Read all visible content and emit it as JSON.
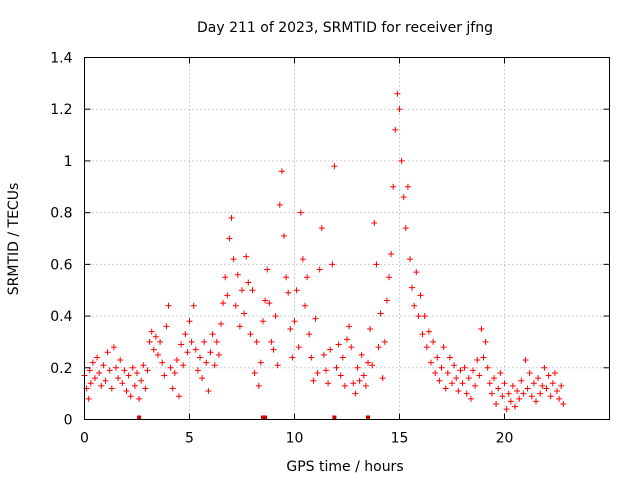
{
  "chart_data": {
    "type": "scatter",
    "title": "Day 211 of 2023, SRMTID for receiver jfng",
    "xlabel": "GPS time / hours",
    "ylabel": "SRMTID / TECUs",
    "xlim": [
      0,
      25
    ],
    "ylim": [
      0,
      1.4
    ],
    "xticks": [
      0,
      5,
      10,
      15,
      20
    ],
    "xtick_labels": [
      "0",
      "5",
      "10",
      "15",
      "20"
    ],
    "yticks": [
      0,
      0.2,
      0.4,
      0.6,
      0.8,
      1.0,
      1.2,
      1.4
    ],
    "ytick_labels": [
      "0",
      "0.2",
      "0.4",
      "0.6",
      "0.8",
      "1",
      "1.2",
      "1.4"
    ],
    "grid": true,
    "marker": "+",
    "colors": {
      "points": "#ff0000",
      "gaps": "#cc0000",
      "axes": "#000000",
      "grid": "#a0a0a0"
    },
    "series": [
      {
        "name": "SRMTID",
        "points": [
          [
            0.0,
            0.17
          ],
          [
            0.1,
            0.12
          ],
          [
            0.2,
            0.08
          ],
          [
            0.25,
            0.19
          ],
          [
            0.3,
            0.14
          ],
          [
            0.4,
            0.22
          ],
          [
            0.5,
            0.16
          ],
          [
            0.6,
            0.24
          ],
          [
            0.7,
            0.18
          ],
          [
            0.8,
            0.13
          ],
          [
            0.9,
            0.21
          ],
          [
            1.0,
            0.15
          ],
          [
            1.1,
            0.26
          ],
          [
            1.2,
            0.19
          ],
          [
            1.3,
            0.12
          ],
          [
            1.4,
            0.28
          ],
          [
            1.5,
            0.2
          ],
          [
            1.6,
            0.16
          ],
          [
            1.7,
            0.23
          ],
          [
            1.8,
            0.14
          ],
          [
            1.9,
            0.19
          ],
          [
            2.0,
            0.11
          ],
          [
            2.1,
            0.17
          ],
          [
            2.2,
            0.09
          ],
          [
            2.3,
            0.2
          ],
          [
            2.4,
            0.13
          ],
          [
            2.5,
            0.18
          ],
          [
            2.6,
            0.08
          ],
          [
            2.7,
            0.15
          ],
          [
            2.8,
            0.21
          ],
          [
            2.9,
            0.12
          ],
          [
            3.0,
            0.19
          ],
          [
            3.1,
            0.3
          ],
          [
            3.2,
            0.34
          ],
          [
            3.3,
            0.27
          ],
          [
            3.4,
            0.32
          ],
          [
            3.5,
            0.25
          ],
          [
            3.6,
            0.3
          ],
          [
            3.7,
            0.22
          ],
          [
            3.8,
            0.17
          ],
          [
            3.9,
            0.36
          ],
          [
            4.0,
            0.44
          ],
          [
            4.1,
            0.2
          ],
          [
            4.2,
            0.12
          ],
          [
            4.3,
            0.18
          ],
          [
            4.4,
            0.23
          ],
          [
            4.5,
            0.09
          ],
          [
            4.6,
            0.29
          ],
          [
            4.7,
            0.21
          ],
          [
            4.8,
            0.33
          ],
          [
            4.9,
            0.26
          ],
          [
            5.0,
            0.38
          ],
          [
            5.1,
            0.3
          ],
          [
            5.2,
            0.44
          ],
          [
            5.3,
            0.27
          ],
          [
            5.4,
            0.19
          ],
          [
            5.5,
            0.24
          ],
          [
            5.6,
            0.16
          ],
          [
            5.7,
            0.3
          ],
          [
            5.8,
            0.22
          ],
          [
            5.9,
            0.11
          ],
          [
            6.0,
            0.26
          ],
          [
            6.1,
            0.33
          ],
          [
            6.2,
            0.21
          ],
          [
            6.3,
            0.3
          ],
          [
            6.4,
            0.25
          ],
          [
            6.5,
            0.37
          ],
          [
            6.6,
            0.45
          ],
          [
            6.7,
            0.55
          ],
          [
            6.8,
            0.48
          ],
          [
            6.9,
            0.7
          ],
          [
            7.0,
            0.78
          ],
          [
            7.1,
            0.62
          ],
          [
            7.2,
            0.44
          ],
          [
            7.3,
            0.56
          ],
          [
            7.4,
            0.36
          ],
          [
            7.5,
            0.5
          ],
          [
            7.6,
            0.41
          ],
          [
            7.7,
            0.63
          ],
          [
            7.8,
            0.53
          ],
          [
            7.9,
            0.33
          ],
          [
            8.0,
            0.5
          ],
          [
            8.1,
            0.18
          ],
          [
            8.2,
            0.3
          ],
          [
            8.3,
            0.13
          ],
          [
            8.4,
            0.22
          ],
          [
            8.5,
            0.38
          ],
          [
            8.6,
            0.46
          ],
          [
            8.7,
            0.58
          ],
          [
            8.8,
            0.45
          ],
          [
            8.9,
            0.3
          ],
          [
            9.0,
            0.27
          ],
          [
            9.1,
            0.4
          ],
          [
            9.2,
            0.21
          ],
          [
            9.3,
            0.83
          ],
          [
            9.4,
            0.96
          ],
          [
            9.5,
            0.71
          ],
          [
            9.6,
            0.55
          ],
          [
            9.7,
            0.49
          ],
          [
            9.8,
            0.35
          ],
          [
            9.9,
            0.24
          ],
          [
            10.0,
            0.38
          ],
          [
            10.1,
            0.5
          ],
          [
            10.2,
            0.28
          ],
          [
            10.3,
            0.8
          ],
          [
            10.4,
            0.62
          ],
          [
            10.5,
            0.44
          ],
          [
            10.6,
            0.55
          ],
          [
            10.7,
            0.33
          ],
          [
            10.8,
            0.24
          ],
          [
            10.9,
            0.15
          ],
          [
            11.0,
            0.39
          ],
          [
            11.1,
            0.18
          ],
          [
            11.2,
            0.58
          ],
          [
            11.3,
            0.74
          ],
          [
            11.4,
            0.25
          ],
          [
            11.5,
            0.19
          ],
          [
            11.6,
            0.14
          ],
          [
            11.7,
            0.27
          ],
          [
            11.8,
            0.6
          ],
          [
            11.9,
            0.98
          ],
          [
            12.0,
            0.2
          ],
          [
            12.1,
            0.29
          ],
          [
            12.2,
            0.17
          ],
          [
            12.3,
            0.24
          ],
          [
            12.4,
            0.13
          ],
          [
            12.5,
            0.31
          ],
          [
            12.6,
            0.36
          ],
          [
            12.7,
            0.28
          ],
          [
            12.8,
            0.14
          ],
          [
            12.9,
            0.1
          ],
          [
            13.0,
            0.2
          ],
          [
            13.1,
            0.15
          ],
          [
            13.2,
            0.25
          ],
          [
            13.3,
            0.17
          ],
          [
            13.4,
            0.13
          ],
          [
            13.5,
            0.22
          ],
          [
            13.6,
            0.35
          ],
          [
            13.7,
            0.21
          ],
          [
            13.8,
            0.76
          ],
          [
            13.9,
            0.6
          ],
          [
            14.0,
            0.28
          ],
          [
            14.1,
            0.41
          ],
          [
            14.2,
            0.16
          ],
          [
            14.3,
            0.3
          ],
          [
            14.4,
            0.46
          ],
          [
            14.5,
            0.55
          ],
          [
            14.6,
            0.64
          ],
          [
            14.7,
            0.9
          ],
          [
            14.8,
            1.12
          ],
          [
            14.9,
            1.26
          ],
          [
            15.0,
            1.2
          ],
          [
            15.1,
            1.0
          ],
          [
            15.2,
            0.86
          ],
          [
            15.3,
            0.74
          ],
          [
            15.4,
            0.9
          ],
          [
            15.5,
            0.62
          ],
          [
            15.6,
            0.51
          ],
          [
            15.7,
            0.44
          ],
          [
            15.8,
            0.57
          ],
          [
            15.9,
            0.4
          ],
          [
            16.0,
            0.48
          ],
          [
            16.1,
            0.33
          ],
          [
            16.2,
            0.4
          ],
          [
            16.3,
            0.28
          ],
          [
            16.4,
            0.34
          ],
          [
            16.5,
            0.22
          ],
          [
            16.6,
            0.3
          ],
          [
            16.7,
            0.18
          ],
          [
            16.8,
            0.24
          ],
          [
            16.9,
            0.15
          ],
          [
            17.0,
            0.2
          ],
          [
            17.1,
            0.28
          ],
          [
            17.2,
            0.12
          ],
          [
            17.3,
            0.18
          ],
          [
            17.4,
            0.24
          ],
          [
            17.5,
            0.14
          ],
          [
            17.6,
            0.21
          ],
          [
            17.7,
            0.16
          ],
          [
            17.8,
            0.11
          ],
          [
            17.9,
            0.19
          ],
          [
            18.0,
            0.14
          ],
          [
            18.1,
            0.2
          ],
          [
            18.2,
            0.1
          ],
          [
            18.3,
            0.16
          ],
          [
            18.4,
            0.08
          ],
          [
            18.5,
            0.19
          ],
          [
            18.6,
            0.13
          ],
          [
            18.7,
            0.23
          ],
          [
            18.8,
            0.17
          ],
          [
            18.9,
            0.35
          ],
          [
            19.0,
            0.24
          ],
          [
            19.1,
            0.3
          ],
          [
            19.2,
            0.2
          ],
          [
            19.3,
            0.14
          ],
          [
            19.4,
            0.1
          ],
          [
            19.5,
            0.16
          ],
          [
            19.6,
            0.06
          ],
          [
            19.7,
            0.12
          ],
          [
            19.8,
            0.18
          ],
          [
            19.9,
            0.09
          ],
          [
            20.0,
            0.14
          ],
          [
            20.1,
            0.04
          ],
          [
            20.2,
            0.1
          ],
          [
            20.3,
            0.07
          ],
          [
            20.4,
            0.13
          ],
          [
            20.5,
            0.05
          ],
          [
            20.6,
            0.11
          ],
          [
            20.7,
            0.08
          ],
          [
            20.8,
            0.15
          ],
          [
            20.9,
            0.1
          ],
          [
            21.0,
            0.23
          ],
          [
            21.1,
            0.12
          ],
          [
            21.2,
            0.18
          ],
          [
            21.3,
            0.09
          ],
          [
            21.4,
            0.14
          ],
          [
            21.5,
            0.07
          ],
          [
            21.6,
            0.16
          ],
          [
            21.7,
            0.1
          ],
          [
            21.8,
            0.13
          ],
          [
            21.9,
            0.2
          ],
          [
            22.0,
            0.12
          ],
          [
            22.1,
            0.17
          ],
          [
            22.2,
            0.09
          ],
          [
            22.3,
            0.14
          ],
          [
            22.4,
            0.18
          ],
          [
            22.5,
            0.11
          ],
          [
            22.6,
            0.08
          ],
          [
            22.7,
            0.13
          ],
          [
            22.8,
            0.06
          ]
        ]
      }
    ],
    "gap_markers": [
      2.6,
      8.5,
      8.6,
      11.9,
      13.5
    ]
  }
}
